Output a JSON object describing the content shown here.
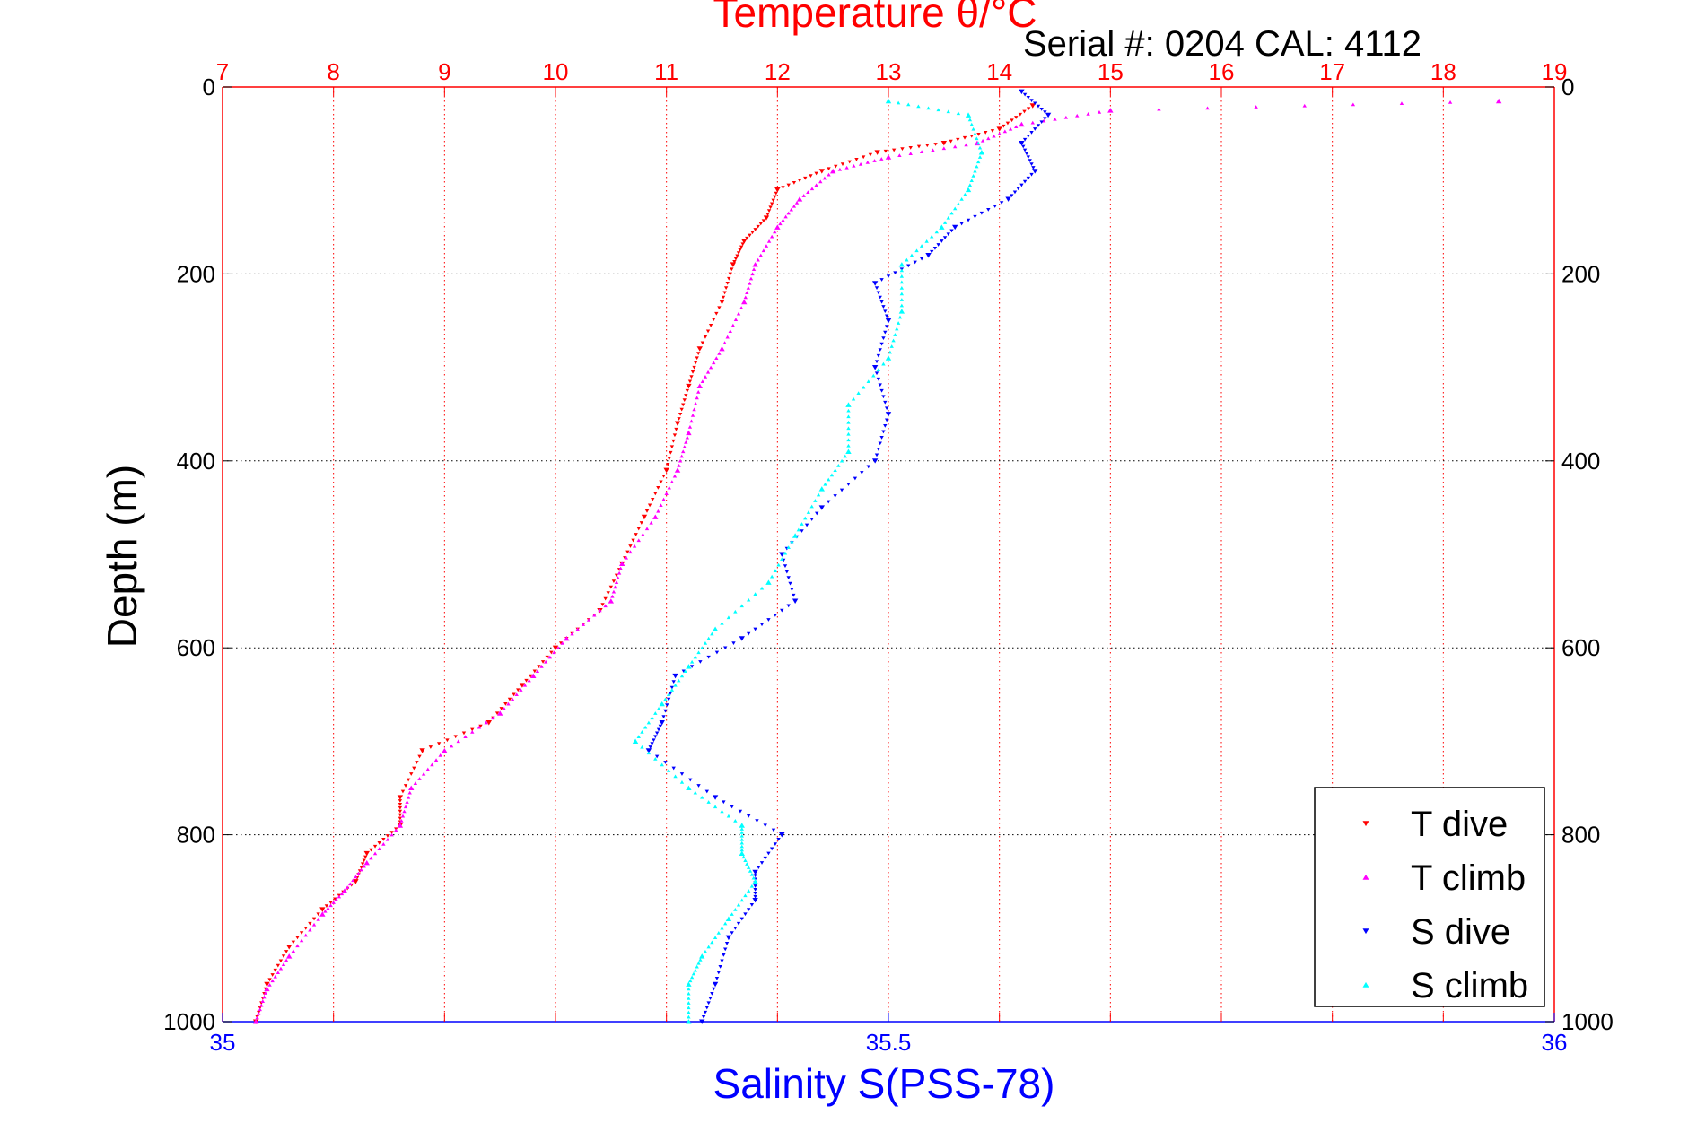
{
  "chart_data": {
    "type": "scatter",
    "title": "Temperature θ/°C",
    "subtitle": "Serial #: 0204  CAL: 4112",
    "xlabel": "Salinity S(PSS-78)",
    "ylabel": "Depth (m)",
    "x_top": {
      "label": "Temperature θ/°C",
      "range": [
        7,
        19
      ],
      "ticks": [
        "7",
        "8",
        "9",
        "10",
        "11",
        "12",
        "13",
        "14",
        "15",
        "16",
        "17",
        "18",
        "19"
      ]
    },
    "x_bottom": {
      "label": "Salinity S(PSS-78)",
      "range": [
        35,
        36
      ],
      "ticks": [
        "35",
        "35.5",
        "36"
      ]
    },
    "y": {
      "label": "Depth (m)",
      "range": [
        0,
        1000
      ],
      "reversed": true,
      "ticks": [
        "0",
        "200",
        "400",
        "600",
        "800",
        "1000"
      ]
    },
    "grid": true,
    "legend_position": "bottom-right",
    "colors": {
      "top_axis": "#ff0000",
      "bottom_axis": "#0000ff"
    },
    "series": [
      {
        "name": "T dive",
        "axis": "temperature",
        "marker": "triangle-down",
        "color": "#ff0000",
        "points": [
          [
            14.3,
            20
          ],
          [
            14.0,
            45
          ],
          [
            13.5,
            60
          ],
          [
            12.9,
            70
          ],
          [
            12.4,
            90
          ],
          [
            12.0,
            110
          ],
          [
            11.9,
            140
          ],
          [
            11.7,
            165
          ],
          [
            11.6,
            190
          ],
          [
            11.5,
            230
          ],
          [
            11.3,
            280
          ],
          [
            11.2,
            320
          ],
          [
            11.1,
            360
          ],
          [
            11.0,
            410
          ],
          [
            10.8,
            460
          ],
          [
            10.6,
            510
          ],
          [
            10.4,
            560
          ],
          [
            10.0,
            600
          ],
          [
            9.7,
            640
          ],
          [
            9.4,
            680
          ],
          [
            8.8,
            710
          ],
          [
            8.6,
            760
          ],
          [
            8.6,
            790
          ],
          [
            8.3,
            820
          ],
          [
            8.2,
            850
          ],
          [
            7.9,
            880
          ],
          [
            7.6,
            920
          ],
          [
            7.4,
            960
          ],
          [
            7.3,
            1000
          ]
        ]
      },
      {
        "name": "T climb",
        "axis": "temperature",
        "marker": "triangle-up",
        "color": "#ff00ff",
        "points": [
          [
            18.5,
            15
          ],
          [
            15.0,
            25
          ],
          [
            14.2,
            40
          ],
          [
            13.8,
            60
          ],
          [
            13.0,
            75
          ],
          [
            12.5,
            90
          ],
          [
            12.2,
            120
          ],
          [
            12.0,
            150
          ],
          [
            11.8,
            190
          ],
          [
            11.7,
            230
          ],
          [
            11.5,
            280
          ],
          [
            11.3,
            320
          ],
          [
            11.2,
            370
          ],
          [
            11.1,
            410
          ],
          [
            10.9,
            460
          ],
          [
            10.6,
            510
          ],
          [
            10.5,
            550
          ],
          [
            10.1,
            590
          ],
          [
            9.8,
            630
          ],
          [
            9.5,
            670
          ],
          [
            9.0,
            710
          ],
          [
            8.7,
            750
          ],
          [
            8.6,
            790
          ],
          [
            8.3,
            830
          ],
          [
            8.1,
            860
          ],
          [
            7.9,
            885
          ],
          [
            7.6,
            930
          ],
          [
            7.4,
            965
          ],
          [
            7.3,
            1000
          ]
        ]
      },
      {
        "name": "S dive",
        "axis": "salinity",
        "marker": "triangle-down",
        "color": "#0000ff",
        "points": [
          [
            35.6,
            5
          ],
          [
            35.62,
            30
          ],
          [
            35.6,
            60
          ],
          [
            35.61,
            90
          ],
          [
            35.59,
            120
          ],
          [
            35.55,
            150
          ],
          [
            35.53,
            180
          ],
          [
            35.49,
            210
          ],
          [
            35.5,
            250
          ],
          [
            35.49,
            300
          ],
          [
            35.5,
            350
          ],
          [
            35.49,
            400
          ],
          [
            35.45,
            450
          ],
          [
            35.42,
            500
          ],
          [
            35.43,
            550
          ],
          [
            35.39,
            590
          ],
          [
            35.34,
            630
          ],
          [
            35.33,
            680
          ],
          [
            35.32,
            710
          ],
          [
            35.37,
            760
          ],
          [
            35.42,
            800
          ],
          [
            35.4,
            840
          ],
          [
            35.4,
            870
          ],
          [
            35.38,
            910
          ],
          [
            35.37,
            960
          ],
          [
            35.36,
            1000
          ]
        ]
      },
      {
        "name": "S climb",
        "axis": "salinity",
        "marker": "triangle-up",
        "color": "#00ffff",
        "points": [
          [
            35.5,
            15
          ],
          [
            35.56,
            30
          ],
          [
            35.57,
            70
          ],
          [
            35.56,
            110
          ],
          [
            35.54,
            150
          ],
          [
            35.51,
            190
          ],
          [
            35.51,
            240
          ],
          [
            35.5,
            290
          ],
          [
            35.47,
            340
          ],
          [
            35.47,
            390
          ],
          [
            35.45,
            430
          ],
          [
            35.43,
            480
          ],
          [
            35.41,
            530
          ],
          [
            35.37,
            580
          ],
          [
            35.35,
            620
          ],
          [
            35.33,
            660
          ],
          [
            35.31,
            700
          ],
          [
            35.35,
            750
          ],
          [
            35.39,
            790
          ],
          [
            35.39,
            820
          ],
          [
            35.4,
            850
          ],
          [
            35.38,
            890
          ],
          [
            35.36,
            930
          ],
          [
            35.35,
            960
          ],
          [
            35.35,
            1000
          ]
        ]
      }
    ]
  }
}
